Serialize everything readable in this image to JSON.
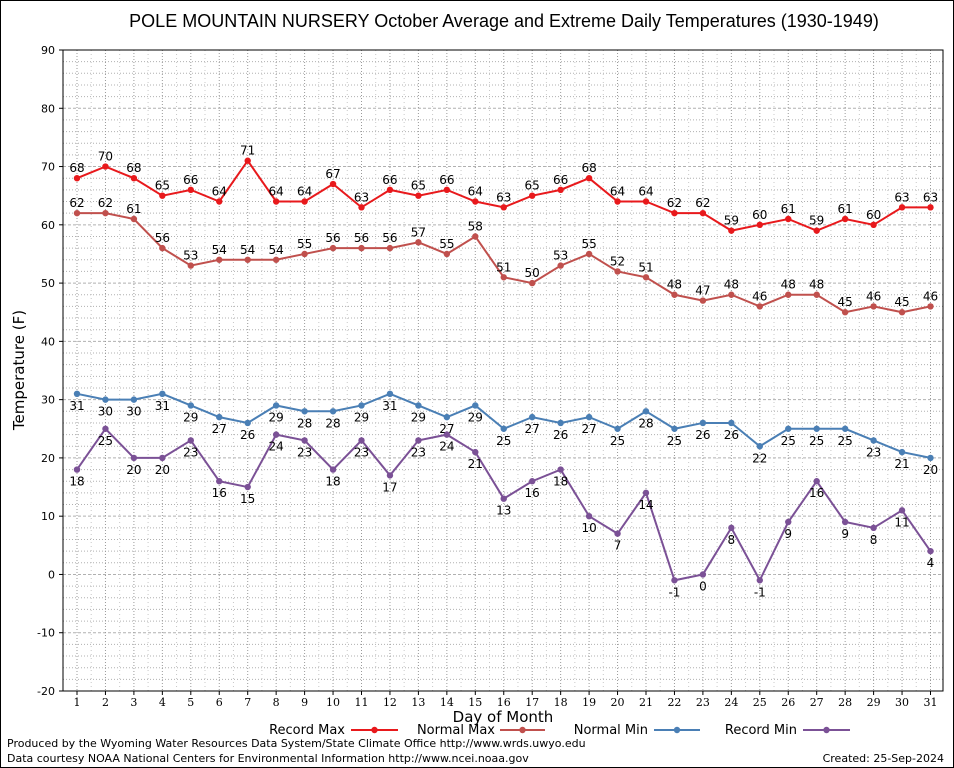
{
  "chart_data": {
    "type": "line",
    "title": "POLE MOUNTAIN NURSERY October Average and Extreme Daily Temperatures (1930-1949)",
    "xlabel": "Day of Month",
    "ylabel": "Temperature (F)",
    "ylim": [
      -20,
      90
    ],
    "yticks": [
      -20,
      -10,
      0,
      10,
      20,
      30,
      40,
      50,
      60,
      70,
      80,
      90
    ],
    "x": [
      1,
      2,
      3,
      4,
      5,
      6,
      7,
      8,
      9,
      10,
      11,
      12,
      13,
      14,
      15,
      16,
      17,
      18,
      19,
      20,
      21,
      22,
      23,
      24,
      25,
      26,
      27,
      28,
      29,
      30,
      31
    ],
    "grid": true,
    "legend_position": "bottom",
    "series": [
      {
        "name": "Record Max",
        "color": "#e8191c",
        "label_pos": "above",
        "values": [
          68,
          70,
          68,
          65,
          66,
          64,
          71,
          64,
          64,
          67,
          63,
          66,
          65,
          66,
          64,
          63,
          65,
          66,
          68,
          64,
          64,
          62,
          62,
          59,
          60,
          61,
          59,
          61,
          60,
          63,
          63
        ]
      },
      {
        "name": "Normal Max",
        "color": "#c0504d",
        "label_pos": "above",
        "values": [
          62,
          62,
          61,
          56,
          53,
          54,
          54,
          54,
          55,
          56,
          56,
          56,
          57,
          55,
          58,
          51,
          50,
          53,
          55,
          52,
          51,
          48,
          47,
          48,
          46,
          48,
          48,
          45,
          46,
          45,
          46
        ]
      },
      {
        "name": "Normal Min",
        "color": "#4a7fb5",
        "label_pos": "below",
        "values": [
          31,
          30,
          30,
          31,
          29,
          27,
          26,
          29,
          28,
          28,
          29,
          31,
          29,
          27,
          29,
          25,
          27,
          26,
          27,
          25,
          28,
          25,
          26,
          26,
          22,
          25,
          25,
          25,
          23,
          21,
          20
        ]
      },
      {
        "name": "Record Min",
        "color": "#7b5196",
        "label_pos": "below",
        "values": [
          18,
          25,
          20,
          20,
          23,
          16,
          15,
          24,
          23,
          18,
          23,
          17,
          23,
          24,
          21,
          13,
          16,
          18,
          10,
          7,
          14,
          -1,
          0,
          8,
          -1,
          9,
          16,
          9,
          8,
          11,
          4
        ]
      }
    ]
  },
  "footer": {
    "produced_by": "Produced by the Wyoming Water Resources Data System/State Climate Office http://www.wrds.uwyo.edu",
    "courtesy": "Data courtesy NOAA National Centers for Environmental Information http://www.ncei.noaa.gov",
    "created": "Created:  25-Sep-2024"
  }
}
